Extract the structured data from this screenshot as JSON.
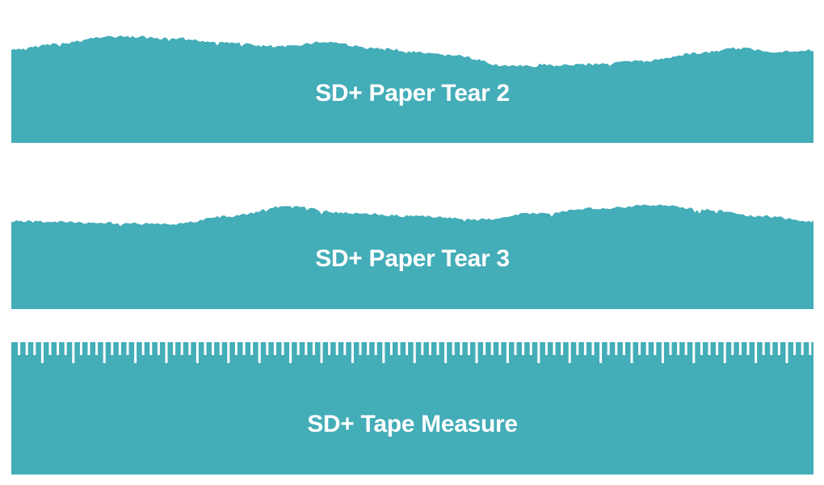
{
  "colors": {
    "fill": "#43adb8",
    "background": "#ffffff",
    "label": "#ffffff"
  },
  "swatches": [
    {
      "label": "SD+ Paper Tear 2",
      "edge": "paper-tear"
    },
    {
      "label": "SD+ Paper Tear 3",
      "edge": "paper-tear"
    },
    {
      "label": "SD+ Tape Measure",
      "edge": "ruler-ticks"
    }
  ]
}
